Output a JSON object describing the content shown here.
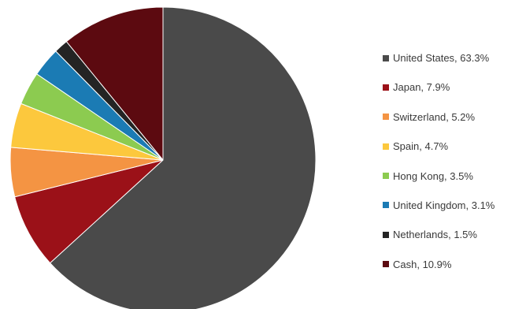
{
  "chart_data": {
    "type": "pie",
    "title": "",
    "legend_position": "right",
    "slices": [
      {
        "label": "United States",
        "value": 63.3,
        "color": "#4a4a4a",
        "legend_text": "United States, 63.3%"
      },
      {
        "label": "Japan",
        "value": 7.9,
        "color": "#9b1118",
        "legend_text": "Japan, 7.9%"
      },
      {
        "label": "Switzerland",
        "value": 5.2,
        "color": "#f49443",
        "legend_text": "Switzerland, 5.2%"
      },
      {
        "label": "Spain",
        "value": 4.7,
        "color": "#fcc83d",
        "legend_text": "Spain, 4.7%"
      },
      {
        "label": "Hong Kong",
        "value": 3.5,
        "color": "#8ccb50",
        "legend_text": "Hong Kong, 3.5%"
      },
      {
        "label": "United Kingdom",
        "value": 3.1,
        "color": "#1b7bb4",
        "legend_text": "United Kingdom, 3.1%"
      },
      {
        "label": "Netherlands",
        "value": 1.5,
        "color": "#242424",
        "legend_text": "Netherlands, 1.5%"
      },
      {
        "label": "Cash",
        "value": 10.9,
        "color": "#5c0a10",
        "legend_text": "Cash, 10.9%"
      }
    ],
    "start_angle_deg": 0,
    "direction": "clockwise"
  }
}
